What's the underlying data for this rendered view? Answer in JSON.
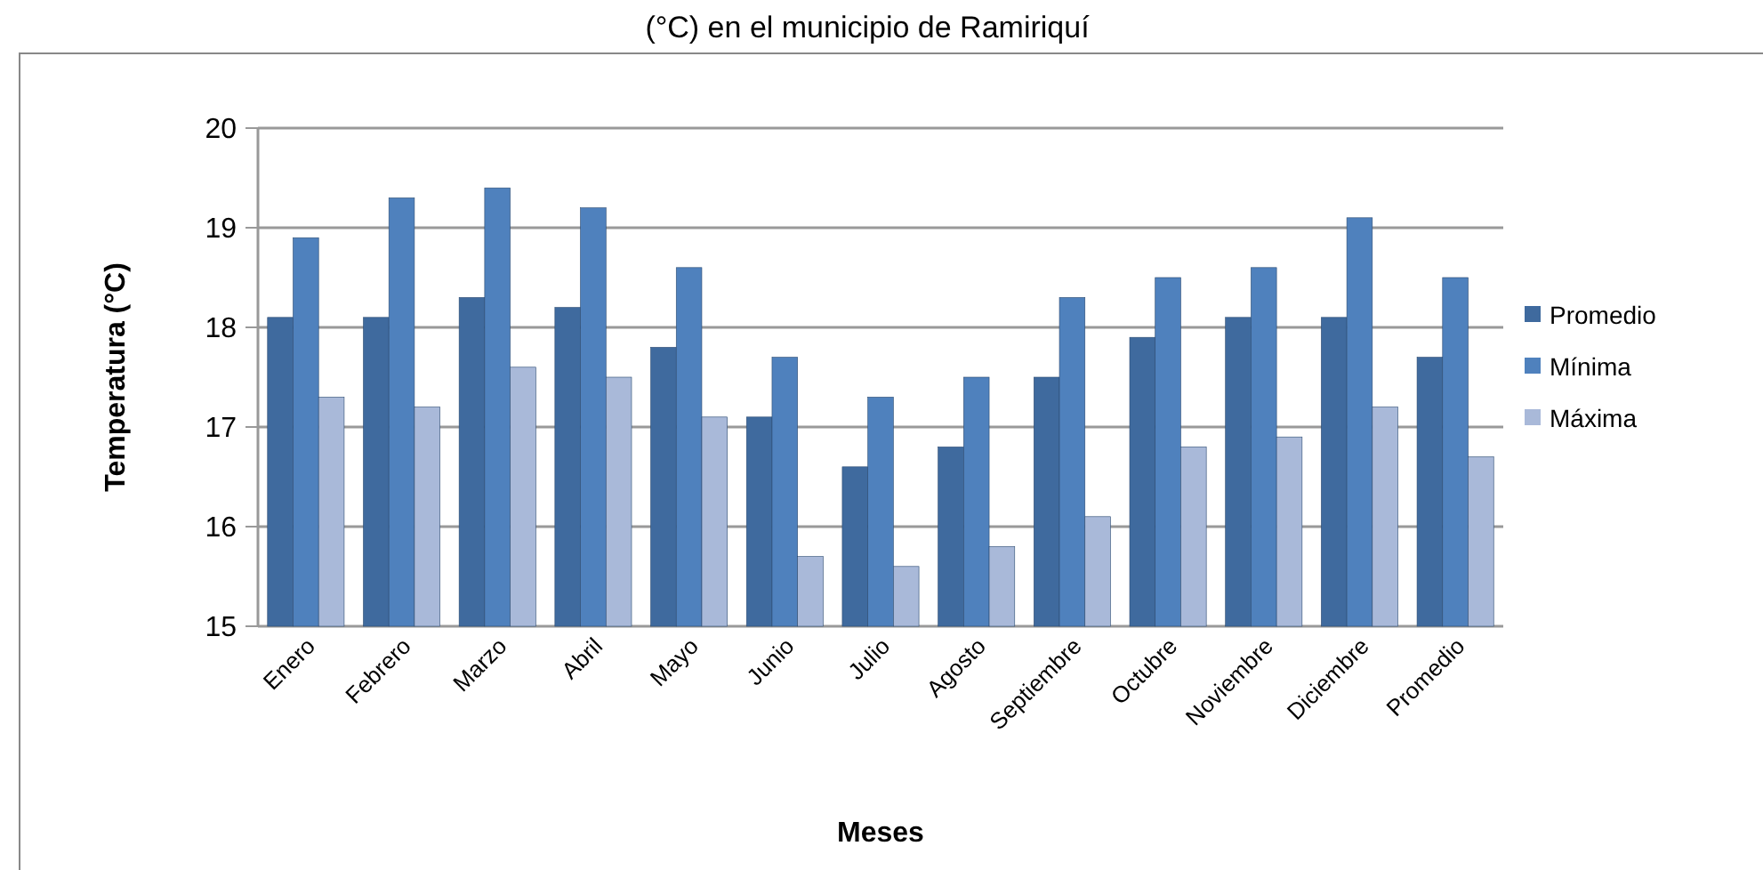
{
  "chart_data": {
    "type": "bar",
    "title": "(°C) en el municipio de Ramiriquí",
    "xlabel": "Meses",
    "ylabel": "Temperatura (°C)",
    "categories": [
      "Enero",
      "Febrero",
      "Marzo",
      "Abril",
      "Mayo",
      "Junio",
      "Julio",
      "Agosto",
      "Septiembre",
      "Octubre",
      "Noviembre",
      "Diciembre",
      "Promedio"
    ],
    "series": [
      {
        "name": "Promedio",
        "color": "#3f6a9e",
        "values": [
          18.1,
          18.1,
          18.3,
          18.2,
          17.8,
          17.1,
          16.6,
          16.8,
          17.5,
          17.9,
          18.1,
          18.1,
          17.7
        ]
      },
      {
        "name": "Mínima",
        "color": "#4f81bd",
        "values": [
          18.9,
          19.3,
          19.4,
          19.2,
          18.6,
          17.7,
          17.3,
          17.5,
          18.3,
          18.5,
          18.6,
          19.1,
          18.5
        ]
      },
      {
        "name": "Máxima",
        "color": "#a9b9d9",
        "values": [
          17.3,
          17.2,
          17.6,
          17.5,
          17.1,
          15.7,
          15.6,
          15.8,
          16.1,
          16.8,
          16.9,
          17.2,
          16.7
        ]
      }
    ],
    "ylim": [
      15,
      20
    ],
    "yticks": [
      15,
      16,
      17,
      18,
      19,
      20
    ],
    "grid": "y",
    "legend": "right"
  }
}
